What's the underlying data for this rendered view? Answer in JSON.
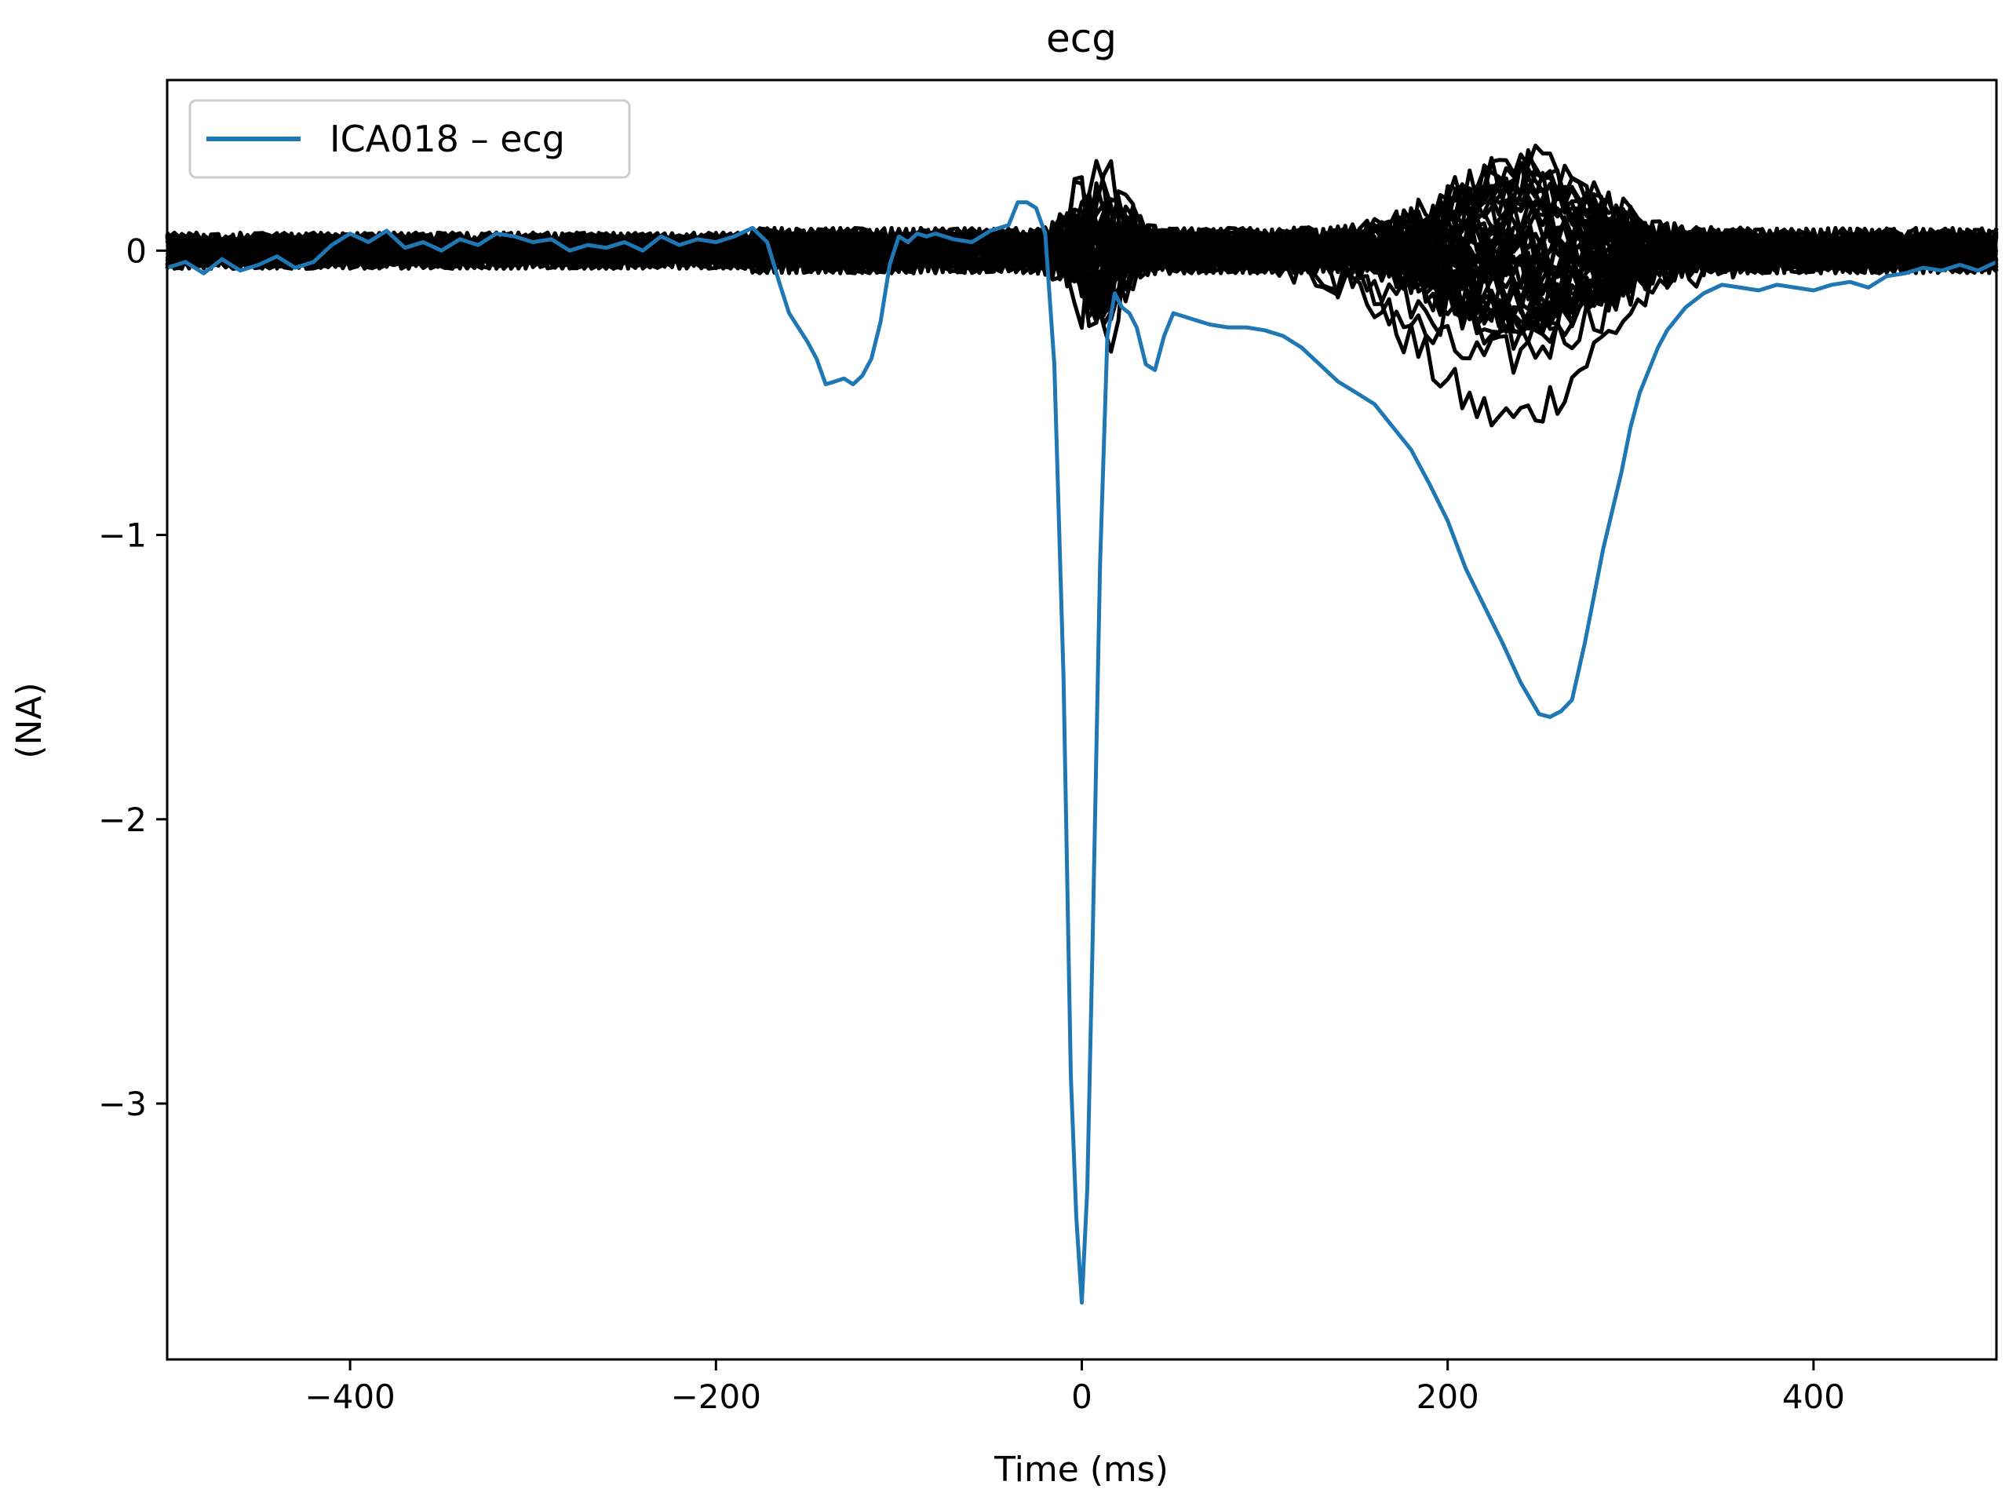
{
  "chart_data": {
    "type": "line",
    "title": "ecg",
    "xlabel": "Time (ms)",
    "ylabel": "(NA)",
    "xlim": [
      -500,
      500
    ],
    "ylim": [
      -3.9,
      0.6
    ],
    "x_ticks": [
      -400,
      -200,
      0,
      200,
      400
    ],
    "x_tick_labels": [
      "−400",
      "−200",
      "0",
      "200",
      "400"
    ],
    "y_ticks": [
      0,
      -1,
      -2,
      -3
    ],
    "y_tick_labels": [
      "0",
      "−1",
      "−2",
      "−3"
    ],
    "grid": false,
    "legend": {
      "placement": "top-left",
      "entries": [
        "ICA018 – ecg"
      ]
    },
    "colors": {
      "highlight": "#1f77b4",
      "others": "#000000"
    },
    "series": [
      {
        "name": "ICA018 – ecg",
        "color": "#1f77b4",
        "x": [
          -500,
          -490,
          -480,
          -470,
          -460,
          -450,
          -440,
          -430,
          -420,
          -410,
          -400,
          -390,
          -380,
          -370,
          -360,
          -350,
          -340,
          -330,
          -320,
          -310,
          -300,
          -290,
          -280,
          -270,
          -260,
          -250,
          -240,
          -230,
          -220,
          -210,
          -200,
          -190,
          -180,
          -172,
          -165,
          -160,
          -155,
          -150,
          -145,
          -140,
          -135,
          -130,
          -125,
          -120,
          -115,
          -110,
          -105,
          -100,
          -95,
          -90,
          -85,
          -80,
          -70,
          -60,
          -50,
          -40,
          -35,
          -30,
          -25,
          -20,
          -15,
          -10,
          -6,
          -3,
          0,
          3,
          6,
          10,
          14,
          18,
          22,
          26,
          30,
          35,
          40,
          45,
          50,
          55,
          60,
          70,
          80,
          90,
          100,
          110,
          120,
          130,
          140,
          150,
          160,
          170,
          180,
          190,
          200,
          210,
          220,
          230,
          240,
          250,
          256,
          262,
          268,
          275,
          285,
          295,
          300,
          305,
          310,
          315,
          320,
          330,
          340,
          350,
          360,
          370,
          380,
          390,
          400,
          410,
          420,
          430,
          440,
          450,
          460,
          470,
          480,
          490,
          500
        ],
        "y": [
          -0.06,
          -0.04,
          -0.08,
          -0.03,
          -0.07,
          -0.05,
          -0.02,
          -0.06,
          -0.04,
          0.02,
          0.06,
          0.03,
          0.07,
          0.01,
          0.03,
          0.0,
          0.04,
          0.02,
          0.06,
          0.05,
          0.03,
          0.04,
          0.0,
          0.02,
          0.01,
          0.03,
          0.0,
          0.05,
          0.02,
          0.04,
          0.03,
          0.05,
          0.08,
          0.03,
          -0.12,
          -0.22,
          -0.27,
          -0.32,
          -0.38,
          -0.47,
          -0.46,
          -0.45,
          -0.47,
          -0.44,
          -0.38,
          -0.25,
          -0.05,
          0.05,
          0.03,
          0.06,
          0.05,
          0.06,
          0.04,
          0.03,
          0.07,
          0.09,
          0.17,
          0.17,
          0.15,
          0.06,
          -0.4,
          -1.5,
          -2.9,
          -3.4,
          -3.7,
          -3.3,
          -2.4,
          -1.1,
          -0.3,
          -0.15,
          -0.2,
          -0.22,
          -0.27,
          -0.4,
          -0.42,
          -0.3,
          -0.22,
          -0.23,
          -0.24,
          -0.26,
          -0.27,
          -0.27,
          -0.28,
          -0.3,
          -0.34,
          -0.4,
          -0.46,
          -0.5,
          -0.54,
          -0.62,
          -0.7,
          -0.82,
          -0.95,
          -1.12,
          -1.25,
          -1.38,
          -1.52,
          -1.63,
          -1.64,
          -1.62,
          -1.58,
          -1.38,
          -1.05,
          -0.78,
          -0.62,
          -0.5,
          -0.42,
          -0.34,
          -0.28,
          -0.2,
          -0.15,
          -0.12,
          -0.13,
          -0.14,
          -0.12,
          -0.13,
          -0.14,
          -0.12,
          -0.11,
          -0.13,
          -0.09,
          -0.08,
          -0.06,
          -0.07,
          -0.05,
          -0.07,
          -0.04
        ]
      }
    ],
    "background_traces": {
      "count": 45,
      "color": "#000000",
      "description_values": "other ICA components, small amplitude around 0"
    }
  }
}
